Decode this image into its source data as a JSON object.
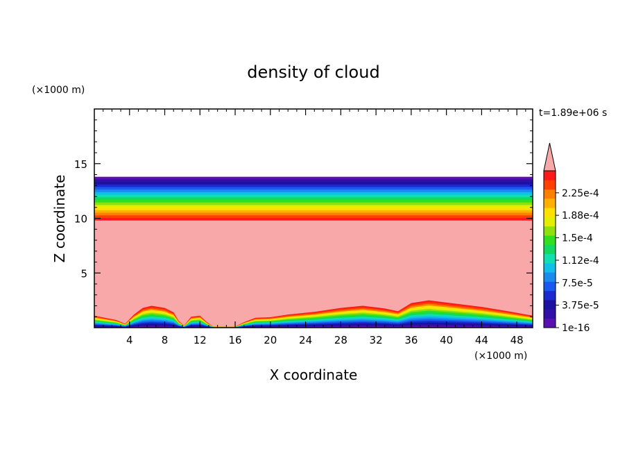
{
  "chart_data": {
    "type": "heatmap",
    "title": "density of cloud",
    "xlabel": "X coordinate",
    "ylabel": "Z coordinate",
    "x_unit": "(×1000 m)",
    "y_unit": "(×1000 m)",
    "time_label": "t=1.89e+06 s",
    "xlim": [
      0,
      49.8
    ],
    "ylim": [
      0,
      20
    ],
    "x_ticks": [
      4,
      8,
      12,
      16,
      20,
      24,
      28,
      32,
      36,
      40,
      44,
      48
    ],
    "y_ticks": [
      5,
      10,
      15
    ],
    "x_tick_labels": [
      "4",
      "8",
      "12",
      "16",
      "20",
      "24",
      "28",
      "32",
      "36",
      "40",
      "44",
      "48"
    ],
    "y_tick_labels": [
      "5",
      "10",
      "15"
    ],
    "cloud_layer": {
      "top_km": 13.8,
      "saturated_top_km": 9.8,
      "surface_profile": [
        [
          0,
          1.1
        ],
        [
          2.5,
          0.7
        ],
        [
          3.5,
          0.35
        ],
        [
          4.5,
          1.2
        ],
        [
          5.5,
          1.8
        ],
        [
          6.5,
          2.0
        ],
        [
          8,
          1.8
        ],
        [
          9,
          1.4
        ],
        [
          9.6,
          0.6
        ],
        [
          10.2,
          0.2
        ],
        [
          11,
          1.0
        ],
        [
          12,
          1.1
        ],
        [
          12.8,
          0.5
        ],
        [
          13.5,
          0.1
        ],
        [
          14.8,
          0.1
        ],
        [
          16,
          0.1
        ],
        [
          17,
          0.5
        ],
        [
          18.3,
          0.9
        ],
        [
          20,
          0.95
        ],
        [
          22,
          1.2
        ],
        [
          25,
          1.45
        ],
        [
          28,
          1.8
        ],
        [
          30.5,
          2.0
        ],
        [
          33,
          1.75
        ],
        [
          34.5,
          1.5
        ],
        [
          36,
          2.25
        ],
        [
          38,
          2.5
        ],
        [
          41,
          2.2
        ],
        [
          44,
          1.9
        ],
        [
          47,
          1.5
        ],
        [
          49.8,
          1.1
        ]
      ]
    },
    "colorbar": {
      "levels": [
        "1e-16",
        "3.75e-5",
        "7.5e-5",
        "1.12e-4",
        "1.5e-4",
        "1.88e-4",
        "2.25e-4"
      ],
      "colors": [
        "#5a0fb0",
        "#3010a8",
        "#1c10a0",
        "#1a2ad0",
        "#1a5af0",
        "#1a8cf0",
        "#10c0e8",
        "#10e0b0",
        "#10d860",
        "#30e020",
        "#90e010",
        "#e0f000",
        "#ffe000",
        "#ffb000",
        "#ff8000",
        "#ff4000",
        "#ff1818"
      ],
      "over_color": "#f8a8a8"
    }
  }
}
